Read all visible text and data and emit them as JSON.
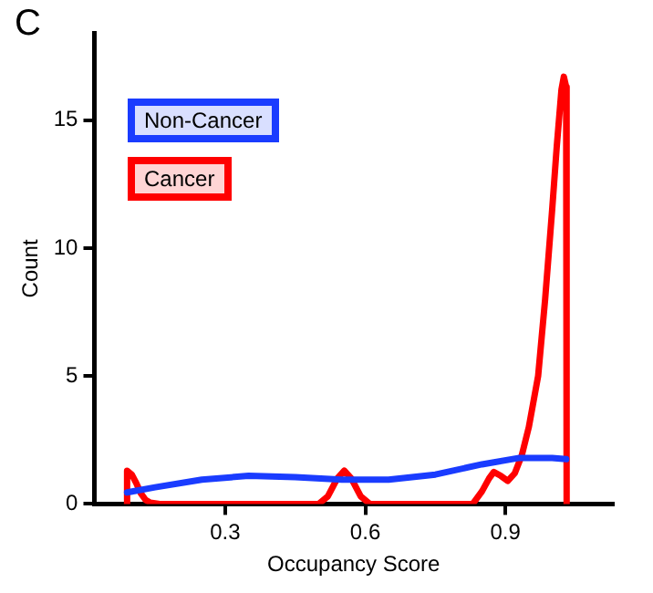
{
  "chart_data": {
    "type": "line",
    "title": "C",
    "xlabel": "Occupancy Score",
    "ylabel": "Count",
    "xlim": [
      0.02,
      1.13
    ],
    "xticks": [
      0.3,
      0.6,
      0.9
    ],
    "ylim": [
      0,
      18.4
    ],
    "yticks": [
      0,
      5,
      10,
      15
    ],
    "grid": false,
    "legend": "top left",
    "marker": "none",
    "line_style": "solid",
    "series": [
      {
        "name": "Non-Cancer",
        "color": "#1a3cff",
        "x": [
          0.09,
          0.15,
          0.25,
          0.35,
          0.45,
          0.55,
          0.65,
          0.75,
          0.85,
          0.93,
          1.0,
          1.03
        ],
        "values": [
          0.45,
          0.65,
          0.95,
          1.1,
          1.05,
          0.95,
          0.95,
          1.15,
          1.55,
          1.8,
          1.8,
          1.75
        ]
      },
      {
        "name": "Cancer",
        "color": "#ff0000",
        "x": [
          0.09,
          0.09,
          0.1,
          0.11,
          0.12,
          0.13,
          0.14,
          0.16,
          0.5,
          0.52,
          0.54,
          0.555,
          0.57,
          0.59,
          0.61,
          0.83,
          0.85,
          0.865,
          0.875,
          0.89,
          0.905,
          0.92,
          0.935,
          0.95,
          0.97,
          0.985,
          1.0,
          1.01,
          1.02,
          1.025,
          1.03,
          1.031
        ],
        "values": [
          0,
          1.3,
          1.15,
          0.8,
          0.4,
          0.15,
          0.05,
          0,
          0,
          0.3,
          1.0,
          1.3,
          1.0,
          0.3,
          0,
          0,
          0.5,
          1.0,
          1.25,
          1.1,
          0.9,
          1.2,
          1.9,
          3,
          5,
          8,
          11.5,
          14,
          16.2,
          16.7,
          16.3,
          0
        ]
      }
    ]
  }
}
